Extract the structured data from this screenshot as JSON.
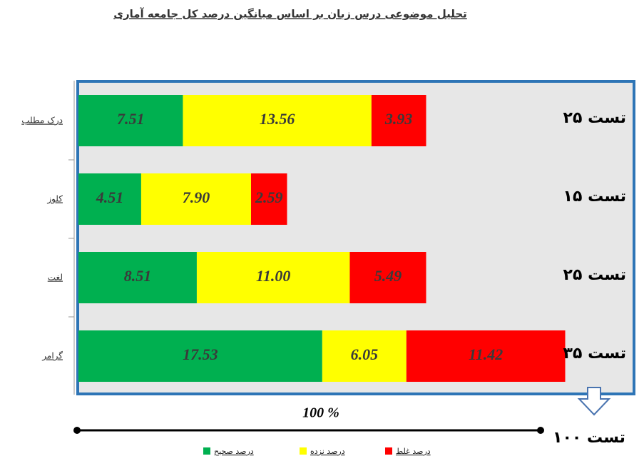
{
  "chart_data": {
    "type": "stacked-barh",
    "title": "تحلیل موضوعی درس زبان بر اساس میانگین درصد کل جامعه آماری",
    "categories": [
      "درک مطلب",
      "کلوز",
      "لغت",
      "گرامر"
    ],
    "series": [
      {
        "name": "درصد صحیح",
        "color": "#00b050",
        "values": [
          7.51,
          4.51,
          8.51,
          17.53
        ],
        "value_labels": [
          "7.51",
          "4.51",
          "8.51",
          "17.53"
        ]
      },
      {
        "name": "درصد نزده",
        "color": "#ffff00",
        "values": [
          13.56,
          7.9,
          11,
          6.05
        ],
        "value_labels": [
          "13.56",
          "7.90",
          "11.00",
          "6.05"
        ]
      },
      {
        "name": "درصد غلط",
        "color": "#ff0000",
        "values": [
          3.93,
          2.59,
          5.49,
          11.42
        ],
        "value_labels": [
          "3.93",
          "2.59",
          "5.49",
          "11.42"
        ]
      }
    ],
    "row_annotations": [
      "۲۵ تست",
      "۱۵ تست",
      "۲۵ تست",
      "۳۵ تست"
    ],
    "footer_label": "100 %",
    "total_label": "۱۰۰ تست",
    "xlim": [
      0,
      40
    ],
    "legend": "bottom"
  }
}
